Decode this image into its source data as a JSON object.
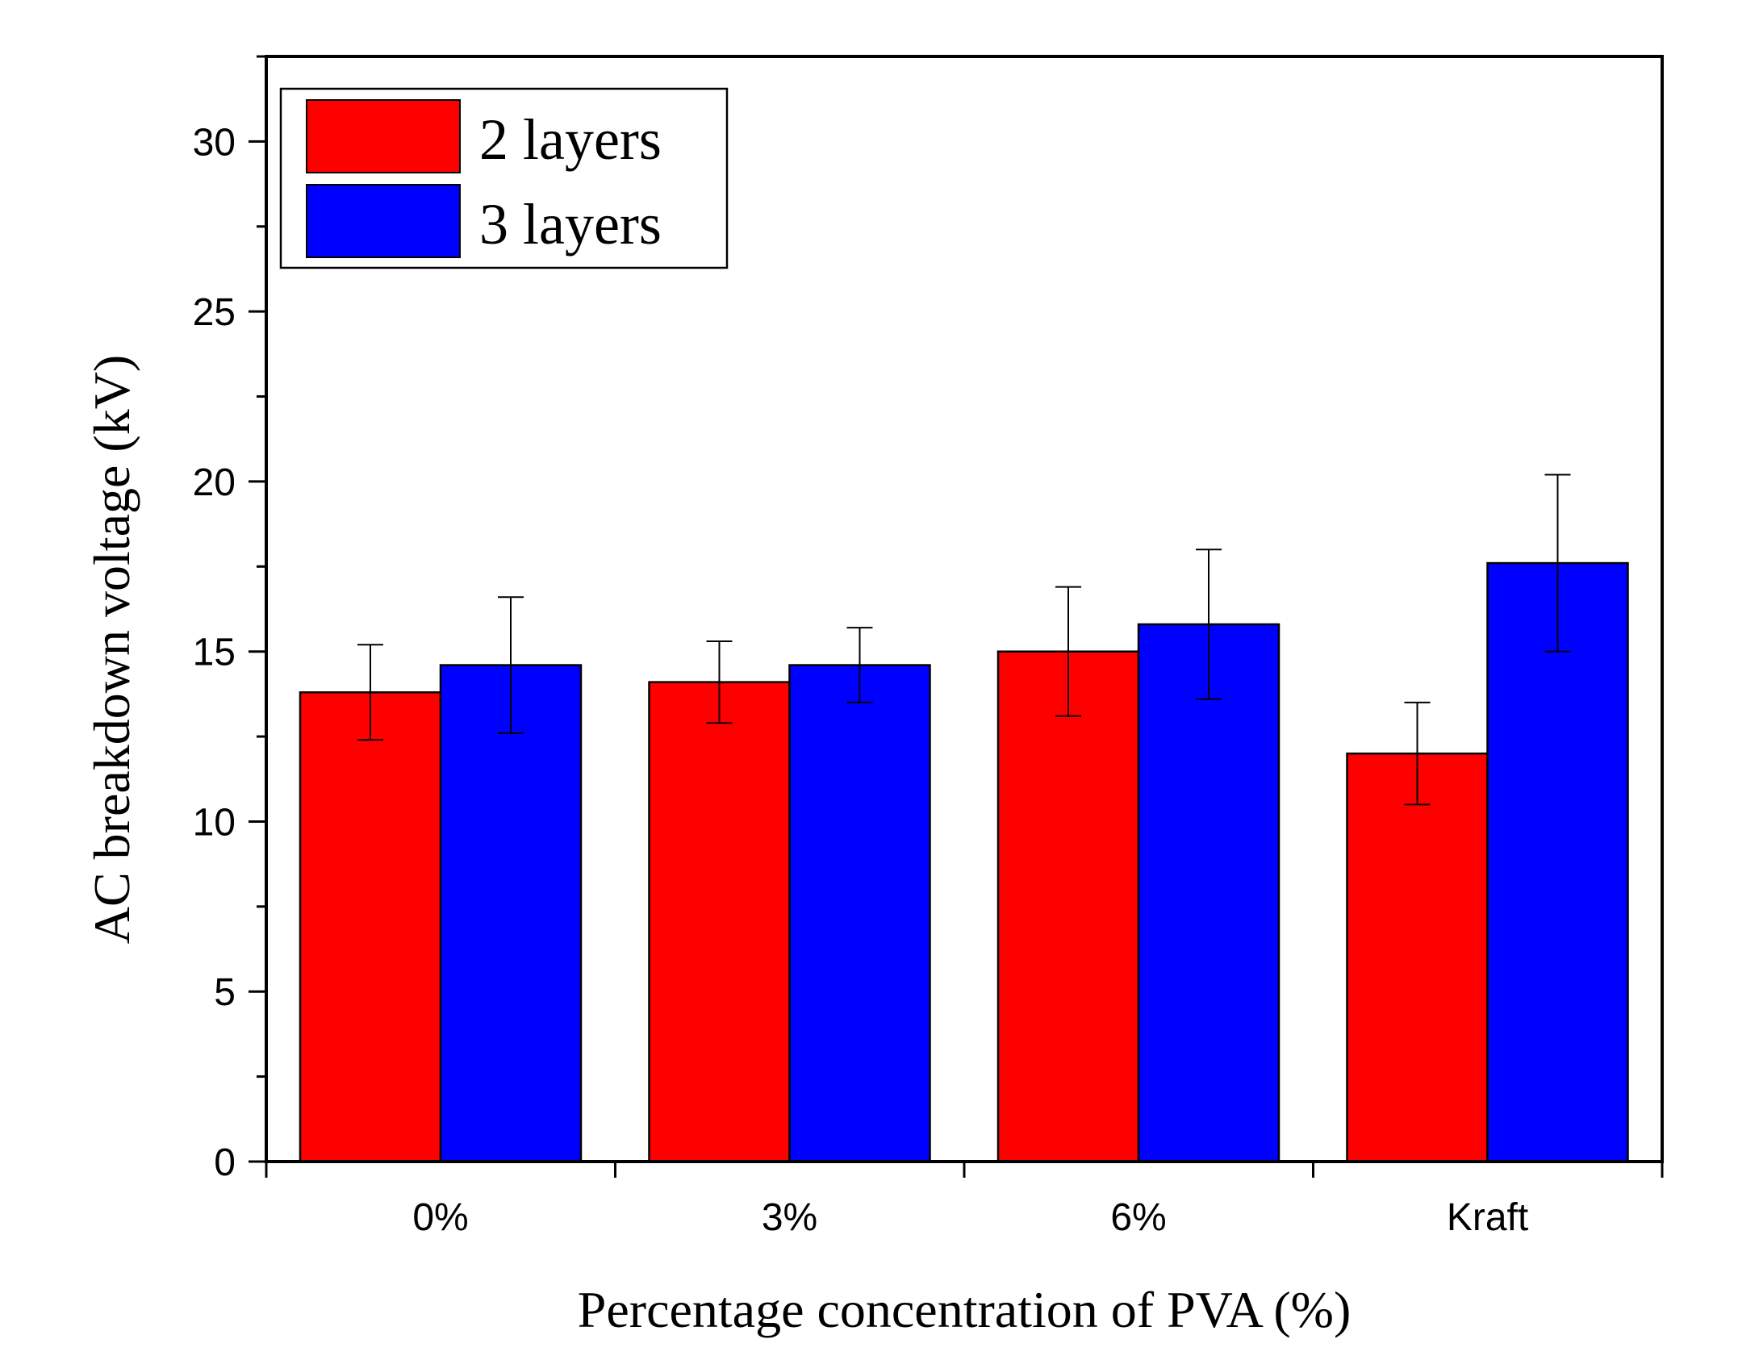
{
  "chart_data": {
    "type": "bar",
    "title": "",
    "xlabel": "Percentage concentration of PVA (%)",
    "ylabel": "AC breakdown voltage (kV)",
    "categories": [
      "0%",
      "3%",
      "6%",
      "Kraft"
    ],
    "ylim": [
      0,
      32.5
    ],
    "yticks": [
      0,
      5,
      10,
      15,
      20,
      25,
      30
    ],
    "grid": false,
    "legend_position": "top-left",
    "series": [
      {
        "name": "2 layers",
        "color": "#ff0000",
        "values": [
          13.8,
          14.1,
          15.0,
          12.0
        ],
        "errors": [
          1.4,
          1.2,
          1.9,
          1.5
        ]
      },
      {
        "name": "3 layers",
        "color": "#0000ff",
        "values": [
          14.6,
          14.6,
          15.8,
          17.6
        ],
        "errors": [
          2.0,
          1.1,
          2.2,
          2.6
        ]
      }
    ]
  }
}
